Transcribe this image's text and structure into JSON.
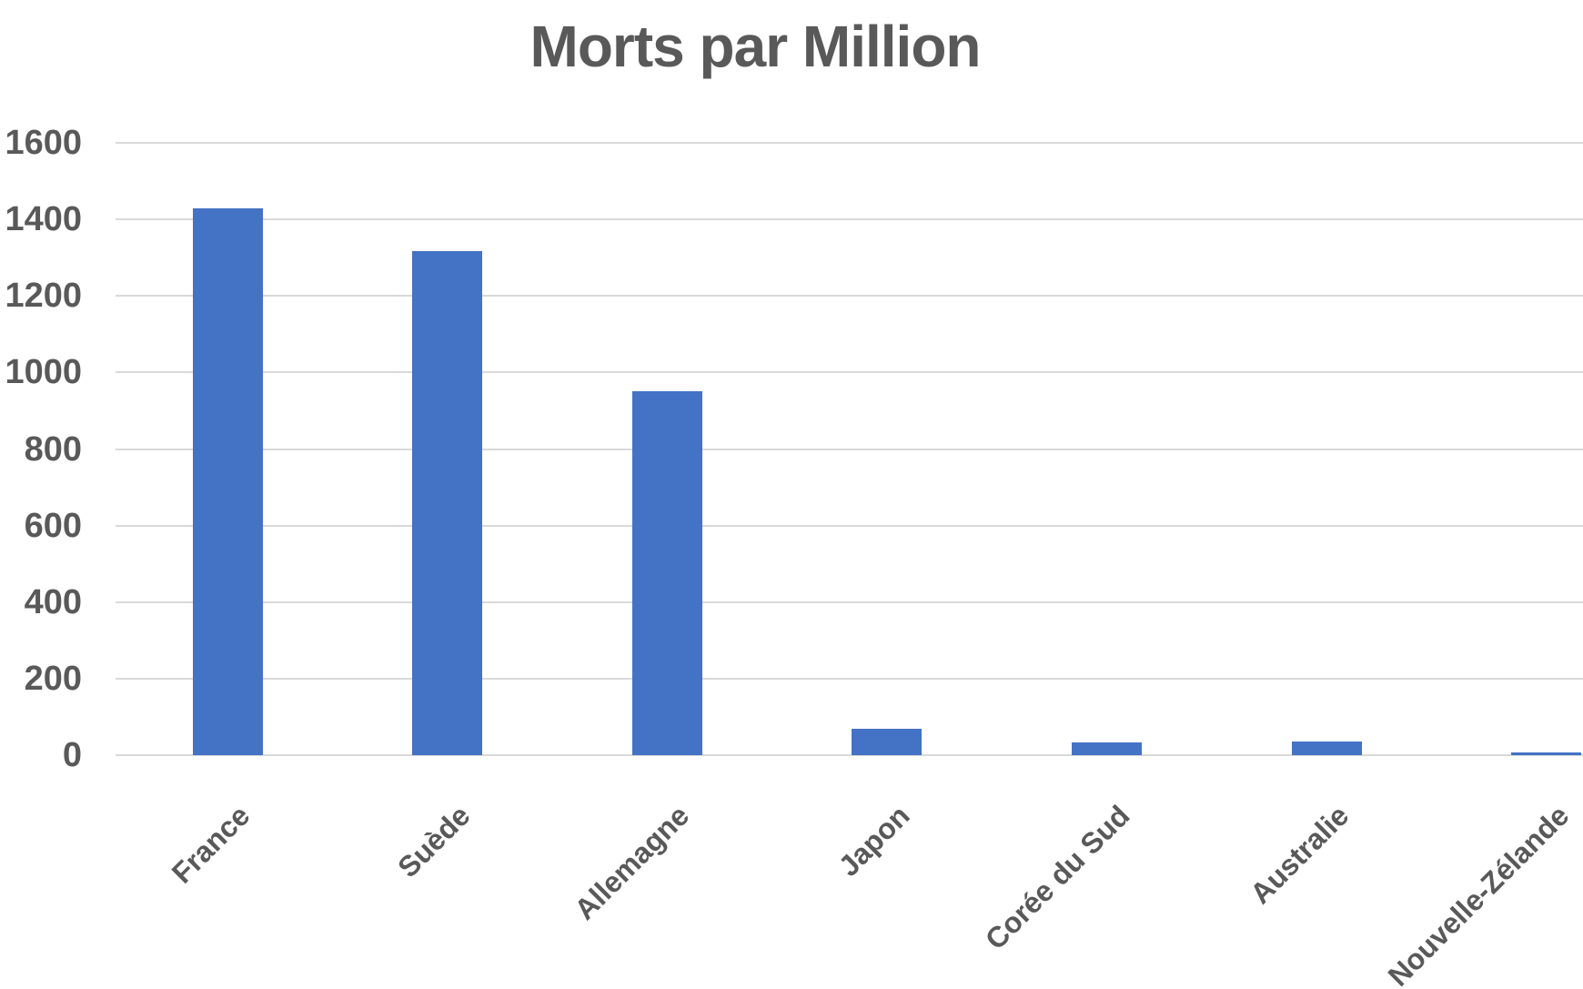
{
  "chart_data": {
    "type": "bar",
    "title": "Morts par Million",
    "categories": [
      "France",
      "Suède",
      "Allemagne",
      "Japon",
      "Corée du Sud",
      "Australie",
      "Nouvelle-Zélande"
    ],
    "values": [
      1430,
      1316,
      950,
      69,
      33,
      36,
      6
    ],
    "xlabel": "",
    "ylabel": "",
    "ylim": [
      0,
      1600
    ],
    "ytick_step": 200,
    "ytick_labels": [
      "0",
      "200",
      "400",
      "600",
      "800",
      "1000",
      "1200",
      "1400",
      "1600"
    ],
    "grid": "horizontal-only",
    "legend_position": "none",
    "bar_color": "#4472C4",
    "text_color": "#595959",
    "gridline_color": "#D9D9D9",
    "background_color": "#FFFFFF"
  }
}
